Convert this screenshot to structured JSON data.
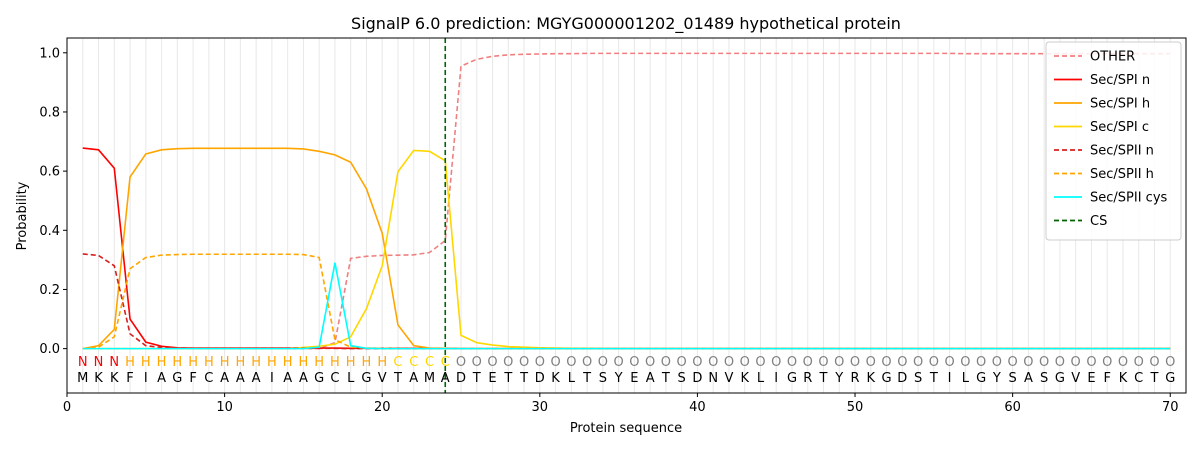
{
  "chart_data": {
    "type": "line",
    "title": "SignalP 6.0 prediction: MGYG000001202_01489 hypothetical protein",
    "xlabel": "Protein sequence",
    "ylabel": "Probability",
    "xlim": [
      0,
      71
    ],
    "ylim": [
      -0.15,
      1.05
    ],
    "xticks": [
      0,
      10,
      20,
      30,
      40,
      50,
      60,
      70
    ],
    "yticks": [
      0.0,
      0.2,
      0.4,
      0.6,
      0.8,
      1.0
    ],
    "x": [
      1,
      2,
      3,
      4,
      5,
      6,
      7,
      8,
      9,
      10,
      11,
      12,
      13,
      14,
      15,
      16,
      17,
      18,
      19,
      20,
      21,
      22,
      23,
      24,
      25,
      26,
      27,
      28,
      29,
      30,
      31,
      32,
      33,
      34,
      35,
      36,
      37,
      38,
      39,
      40,
      41,
      42,
      43,
      44,
      45,
      46,
      47,
      48,
      49,
      50,
      51,
      52,
      53,
      54,
      55,
      56,
      57,
      58,
      59,
      60,
      61,
      62,
      63,
      64,
      65,
      66,
      67,
      68,
      69,
      70
    ],
    "sequence": [
      "M",
      "K",
      "K",
      "F",
      "I",
      "A",
      "G",
      "F",
      "C",
      "A",
      "A",
      "A",
      "I",
      "A",
      "A",
      "G",
      "C",
      "L",
      "G",
      "V",
      "T",
      "A",
      "M",
      "A",
      "D",
      "T",
      "E",
      "T",
      "T",
      "D",
      "K",
      "L",
      "T",
      "S",
      "Y",
      "E",
      "A",
      "T",
      "S",
      "D",
      "N",
      "V",
      "K",
      "L",
      "I",
      "G",
      "R",
      "T",
      "Y",
      "R",
      "K",
      "G",
      "D",
      "S",
      "T",
      "I",
      "L",
      "G",
      "Y",
      "S",
      "A",
      "S",
      "G",
      "V",
      "E",
      "F",
      "K",
      "C",
      "T",
      "G"
    ],
    "region_labels": [
      "N",
      "N",
      "N",
      "H",
      "H",
      "H",
      "H",
      "H",
      "H",
      "H",
      "H",
      "H",
      "H",
      "H",
      "H",
      "H",
      "H",
      "H",
      "H",
      "H",
      "C",
      "C",
      "C",
      "C",
      "O",
      "O",
      "O",
      "O",
      "O",
      "O",
      "O",
      "O",
      "O",
      "O",
      "O",
      "O",
      "O",
      "O",
      "O",
      "O",
      "O",
      "O",
      "O",
      "O",
      "O",
      "O",
      "O",
      "O",
      "O",
      "O",
      "O",
      "O",
      "O",
      "O",
      "O",
      "O",
      "O",
      "O",
      "O",
      "O",
      "O",
      "O",
      "O",
      "O",
      "O",
      "O",
      "O",
      "O",
      "O",
      "O"
    ],
    "region_colors": {
      "N": "#ff0000",
      "H": "#ffa500",
      "C": "#ffd700",
      "O": "#808080"
    },
    "cleavage_site": 24,
    "legend_position": "top-right",
    "grid": "vertical",
    "series": [
      {
        "name": "OTHER",
        "color": "#f08080",
        "dash": "dashed",
        "values": [
          0.0,
          0.0,
          0.0,
          0.0,
          0.0,
          0.0,
          0.0,
          0.0,
          0.0,
          0.0,
          0.0,
          0.0,
          0.0,
          0.0,
          0.0,
          0.0,
          0.02,
          0.305,
          0.312,
          0.315,
          0.316,
          0.317,
          0.325,
          0.365,
          0.955,
          0.978,
          0.988,
          0.993,
          0.995,
          0.996,
          0.997,
          0.997,
          0.998,
          0.998,
          0.998,
          0.998,
          0.998,
          0.998,
          0.998,
          0.998,
          0.998,
          0.998,
          0.998,
          0.998,
          0.998,
          0.998,
          0.998,
          0.998,
          0.998,
          0.998,
          0.998,
          0.998,
          0.998,
          0.998,
          0.998,
          0.998,
          0.997,
          0.997,
          0.997,
          0.997,
          0.997,
          0.997,
          0.997,
          0.997,
          0.997,
          0.997,
          0.997,
          0.997,
          0.997,
          0.997
        ]
      },
      {
        "name": "Sec/SPI n",
        "color": "#ff0000",
        "dash": "solid",
        "values": [
          0.678,
          0.672,
          0.61,
          0.1,
          0.022,
          0.008,
          0.003,
          0.002,
          0.002,
          0.002,
          0.002,
          0.002,
          0.002,
          0.002,
          0.002,
          0.002,
          0.002,
          0.001,
          0.001,
          0.001,
          0.001,
          0.001,
          0.001,
          0.001,
          0.0,
          0.0,
          0.0,
          0.0,
          0.0,
          0.0,
          0.0,
          0.0,
          0.0,
          0.0,
          0.0,
          0.0,
          0.0,
          0.0,
          0.0,
          0.0,
          0.0,
          0.0,
          0.0,
          0.0,
          0.0,
          0.0,
          0.0,
          0.0,
          0.0,
          0.0,
          0.0,
          0.0,
          0.0,
          0.0,
          0.0,
          0.0,
          0.0,
          0.0,
          0.0,
          0.0,
          0.0,
          0.0,
          0.0,
          0.0,
          0.0,
          0.0,
          0.0,
          0.0,
          0.0,
          0.0
        ]
      },
      {
        "name": "Sec/SPI h",
        "color": "#ffa500",
        "dash": "solid",
        "values": [
          0.0,
          0.01,
          0.065,
          0.58,
          0.658,
          0.672,
          0.676,
          0.677,
          0.677,
          0.677,
          0.677,
          0.677,
          0.677,
          0.677,
          0.675,
          0.667,
          0.655,
          0.63,
          0.54,
          0.39,
          0.08,
          0.01,
          0.002,
          0.001,
          0.0,
          0.0,
          0.0,
          0.0,
          0.0,
          0.0,
          0.0,
          0.0,
          0.0,
          0.0,
          0.0,
          0.0,
          0.0,
          0.0,
          0.0,
          0.0,
          0.0,
          0.0,
          0.0,
          0.0,
          0.0,
          0.0,
          0.0,
          0.0,
          0.0,
          0.0,
          0.0,
          0.0,
          0.0,
          0.0,
          0.0,
          0.0,
          0.0,
          0.0,
          0.0,
          0.0,
          0.0,
          0.0,
          0.0,
          0.0,
          0.0,
          0.0,
          0.0,
          0.0,
          0.0,
          0.0
        ]
      },
      {
        "name": "Sec/SPI c",
        "color": "#ffd700",
        "dash": "solid",
        "values": [
          0.0,
          0.0,
          0.0,
          0.0,
          0.0,
          0.0,
          0.0,
          0.0,
          0.0,
          0.0,
          0.0,
          0.0,
          0.0,
          0.0,
          0.004,
          0.008,
          0.015,
          0.04,
          0.135,
          0.28,
          0.598,
          0.67,
          0.667,
          0.635,
          0.045,
          0.02,
          0.012,
          0.007,
          0.005,
          0.003,
          0.002,
          0.001,
          0.001,
          0.0,
          0.0,
          0.0,
          0.0,
          0.0,
          0.0,
          0.0,
          0.0,
          0.0,
          0.0,
          0.0,
          0.0,
          0.0,
          0.0,
          0.0,
          0.0,
          0.0,
          0.0,
          0.0,
          0.0,
          0.0,
          0.0,
          0.0,
          0.0,
          0.0,
          0.0,
          0.0,
          0.0,
          0.0,
          0.0,
          0.0,
          0.0,
          0.0,
          0.0,
          0.0,
          0.0,
          0.0
        ]
      },
      {
        "name": "Sec/SPII n",
        "color": "#d62020",
        "dash": "dashed",
        "values": [
          0.32,
          0.315,
          0.28,
          0.05,
          0.01,
          0.004,
          0.002,
          0.001,
          0.001,
          0.001,
          0.001,
          0.001,
          0.001,
          0.001,
          0.001,
          0.001,
          0.001,
          0.0,
          0.0,
          0.0,
          0.0,
          0.0,
          0.0,
          0.0,
          0.0,
          0.0,
          0.0,
          0.0,
          0.0,
          0.0,
          0.0,
          0.0,
          0.0,
          0.0,
          0.0,
          0.0,
          0.0,
          0.0,
          0.0,
          0.0,
          0.0,
          0.0,
          0.0,
          0.0,
          0.0,
          0.0,
          0.0,
          0.0,
          0.0,
          0.0,
          0.0,
          0.0,
          0.0,
          0.0,
          0.0,
          0.0,
          0.0,
          0.0,
          0.0,
          0.0,
          0.0,
          0.0,
          0.0,
          0.0,
          0.0,
          0.0,
          0.0,
          0.0,
          0.0,
          0.0
        ]
      },
      {
        "name": "Sec/SPII h",
        "color": "#ffa500",
        "dash": "dashed",
        "values": [
          0.0,
          0.005,
          0.04,
          0.27,
          0.308,
          0.316,
          0.318,
          0.319,
          0.319,
          0.319,
          0.319,
          0.319,
          0.319,
          0.319,
          0.318,
          0.308,
          0.03,
          0.005,
          0.002,
          0.001,
          0.0,
          0.0,
          0.0,
          0.0,
          0.0,
          0.0,
          0.0,
          0.0,
          0.0,
          0.0,
          0.0,
          0.0,
          0.0,
          0.0,
          0.0,
          0.0,
          0.0,
          0.0,
          0.0,
          0.0,
          0.0,
          0.0,
          0.0,
          0.0,
          0.0,
          0.0,
          0.0,
          0.0,
          0.0,
          0.0,
          0.0,
          0.0,
          0.0,
          0.0,
          0.0,
          0.0,
          0.0,
          0.0,
          0.0,
          0.0,
          0.0,
          0.0,
          0.0,
          0.0,
          0.0,
          0.0,
          0.0,
          0.0,
          0.0,
          0.0
        ]
      },
      {
        "name": "Sec/SPII cys",
        "color": "#00ffff",
        "dash": "solid",
        "values": [
          0.0,
          0.0,
          0.0,
          0.0,
          0.0,
          0.0,
          0.0,
          0.0,
          0.0,
          0.0,
          0.0,
          0.0,
          0.0,
          0.0,
          0.0,
          0.005,
          0.29,
          0.01,
          0.001,
          0.0,
          0.0,
          0.0,
          0.0,
          0.0,
          0.0,
          0.0,
          0.0,
          0.0,
          0.0,
          0.0,
          0.0,
          0.0,
          0.0,
          0.0,
          0.0,
          0.0,
          0.0,
          0.0,
          0.0,
          0.0,
          0.0,
          0.0,
          0.0,
          0.0,
          0.0,
          0.0,
          0.0,
          0.0,
          0.0,
          0.0,
          0.0,
          0.0,
          0.0,
          0.0,
          0.0,
          0.0,
          0.0,
          0.0,
          0.0,
          0.0,
          0.0,
          0.0,
          0.0,
          0.0,
          0.0,
          0.0,
          0.0,
          0.0,
          0.0,
          0.0
        ]
      }
    ],
    "cs_legend": {
      "name": "CS",
      "color": "#006400",
      "dash": "dashed"
    }
  }
}
